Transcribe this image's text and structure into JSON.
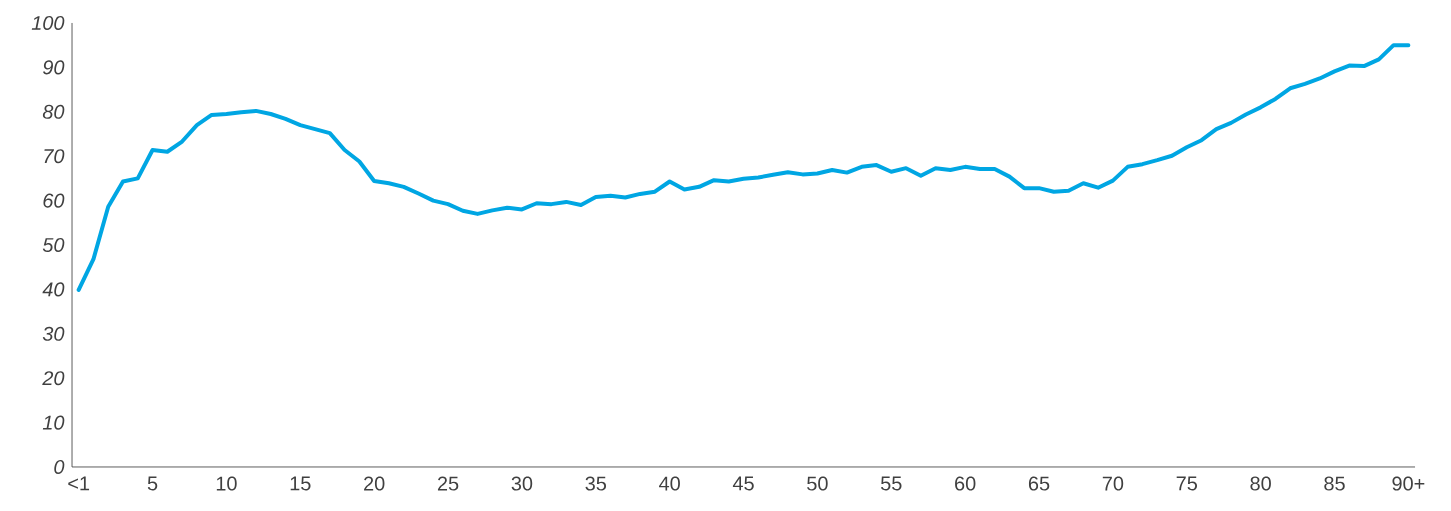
{
  "chart_data": {
    "type": "line",
    "categories": [
      "<1",
      null,
      null,
      null,
      null,
      "5",
      null,
      null,
      null,
      null,
      "10",
      null,
      null,
      null,
      null,
      "15",
      null,
      null,
      null,
      null,
      "20",
      null,
      null,
      null,
      null,
      "25",
      null,
      null,
      null,
      null,
      "30",
      null,
      null,
      null,
      null,
      "35",
      null,
      null,
      null,
      null,
      "40",
      null,
      null,
      null,
      null,
      "45",
      null,
      null,
      null,
      null,
      "50",
      null,
      null,
      null,
      null,
      "55",
      null,
      null,
      null,
      null,
      "60",
      null,
      null,
      null,
      null,
      "65",
      null,
      null,
      null,
      null,
      "70",
      null,
      null,
      null,
      null,
      "75",
      null,
      null,
      null,
      null,
      "80",
      null,
      null,
      null,
      null,
      "85",
      null,
      null,
      null,
      null,
      "90+"
    ],
    "values": [
      39.9,
      46.8,
      58.6,
      64.3,
      65.0,
      71.4,
      71.0,
      73.3,
      77.0,
      79.3,
      79.5,
      79.9,
      80.2,
      79.5,
      78.4,
      77.0,
      76.1,
      75.2,
      71.4,
      68.8,
      64.4,
      63.9,
      63.1,
      61.6,
      60.0,
      59.2,
      57.7,
      57.0,
      57.8,
      58.4,
      58.0,
      59.4,
      59.2,
      59.7,
      59.0,
      60.8,
      61.1,
      60.7,
      61.5,
      62.0,
      64.3,
      62.5,
      63.1,
      64.6,
      64.3,
      64.9,
      65.2,
      65.8,
      66.4,
      65.9,
      66.1,
      66.9,
      66.3,
      67.6,
      68.0,
      66.5,
      67.3,
      65.6,
      67.3,
      66.9,
      67.6,
      67.1,
      67.1,
      65.4,
      62.8,
      62.8,
      62.0,
      62.2,
      63.9,
      62.9,
      64.5,
      67.6,
      68.2,
      69.1,
      70.1,
      72.0,
      73.6,
      76.1,
      77.5,
      79.4,
      81.0,
      82.9,
      85.3,
      86.3,
      87.5,
      89.1,
      90.4,
      90.3,
      91.8,
      95,
      95
    ],
    "color": "#00a6e3",
    "ylim": [
      0,
      100
    ],
    "yticks": [
      0,
      10,
      20,
      30,
      40,
      50,
      60,
      70,
      80,
      90,
      100
    ]
  }
}
